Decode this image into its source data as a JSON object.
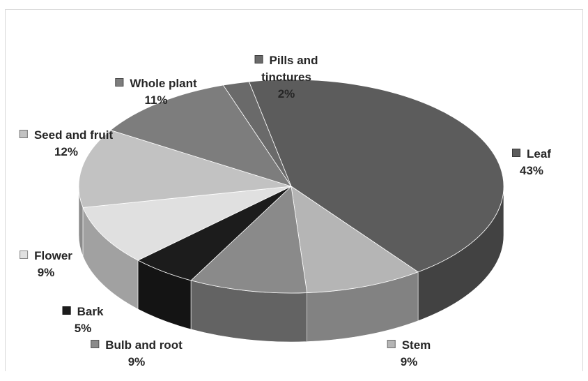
{
  "chart_data": {
    "type": "pie",
    "style": "3d",
    "categories": [
      "Leaf",
      "Stem",
      "Bulb and root",
      "Bark",
      "Flower",
      "Seed and fruit",
      "Whole plant",
      "Pills and tinctures"
    ],
    "values": [
      43,
      9,
      9,
      5,
      9,
      12,
      11,
      2
    ],
    "percent_labels": [
      "43%",
      "9%",
      "9%",
      "5%",
      "9%",
      "12%",
      "11%",
      "2%"
    ],
    "label_lines": [
      [
        "Leaf"
      ],
      [
        "Stem"
      ],
      [
        "Bulb and root"
      ],
      [
        "Bark"
      ],
      [
        "Flower"
      ],
      [
        "Seed and fruit"
      ],
      [
        "Whole plant"
      ],
      [
        "Pills and",
        "tinctures"
      ]
    ],
    "colors": [
      "#5c5c5c",
      "#b5b5b5",
      "#8a8a8a",
      "#1c1c1c",
      "#e0e0e0",
      "#c2c2c2",
      "#7d7d7d",
      "#6a6a6a"
    ],
    "title": "",
    "legend": "none"
  }
}
